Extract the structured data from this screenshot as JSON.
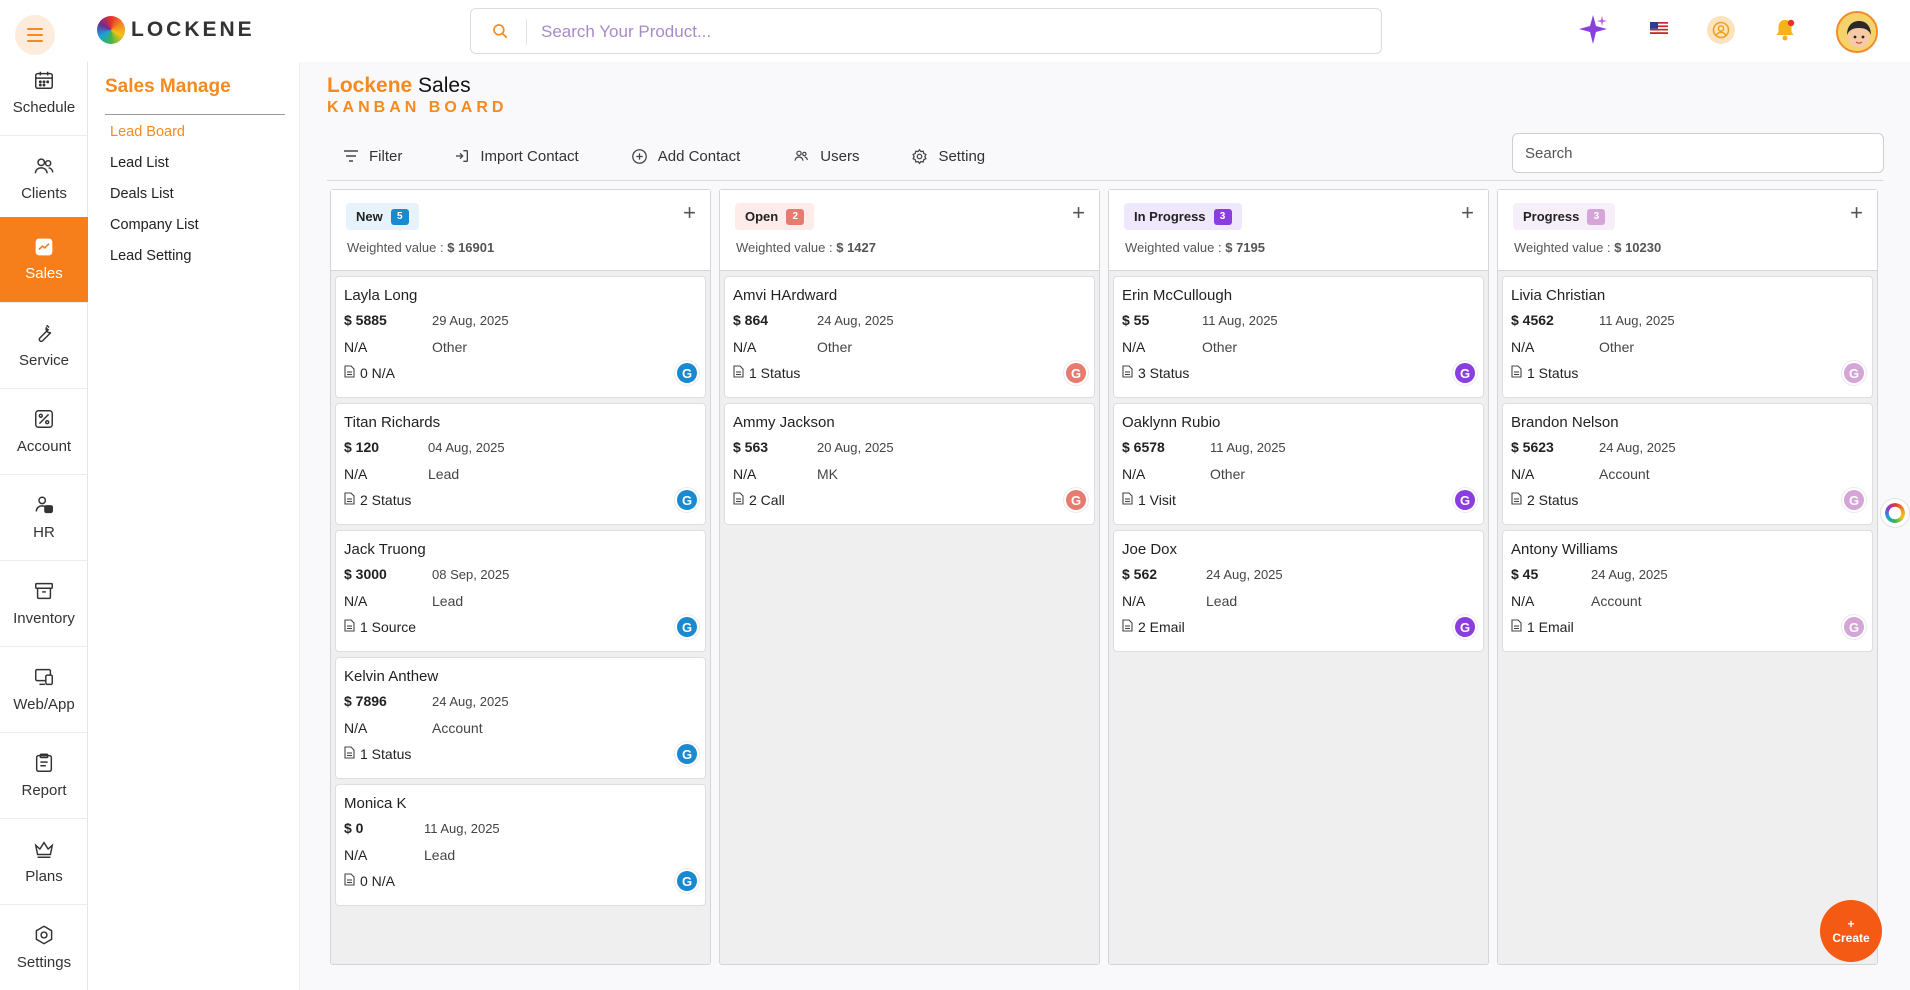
{
  "header": {
    "logo_text": "LOCKENE",
    "search_placeholder": "Search Your Product..."
  },
  "rail": [
    {
      "label": "Schedule",
      "icon": "calendar-icon"
    },
    {
      "label": "Clients",
      "icon": "users-icon"
    },
    {
      "label": "Sales",
      "icon": "trend-icon",
      "active": true
    },
    {
      "label": "Service",
      "icon": "wrench-icon"
    },
    {
      "label": "Account",
      "icon": "percent-icon"
    },
    {
      "label": "HR",
      "icon": "hr-icon"
    },
    {
      "label": "Inventory",
      "icon": "box-icon"
    },
    {
      "label": "Web/App",
      "icon": "devices-icon"
    },
    {
      "label": "Report",
      "icon": "report-icon"
    },
    {
      "label": "Plans",
      "icon": "crown-icon"
    },
    {
      "label": "Settings",
      "icon": "gear-icon"
    }
  ],
  "submenu": {
    "title": "Sales Manage",
    "items": [
      "Lead Board",
      "Lead List",
      "Deals List",
      "Company List",
      "Lead Setting"
    ]
  },
  "page": {
    "brand": "Lockene",
    "title": "Sales",
    "subtitle": "KANBAN BOARD"
  },
  "toolbar": {
    "filter": "Filter",
    "import": "Import Contact",
    "add": "Add Contact",
    "users": "Users",
    "setting": "Setting",
    "search_placeholder": "Search"
  },
  "columns": [
    {
      "title": "New",
      "count": "5",
      "badge_bg": "#e6f3fb",
      "count_bg": "#1a8ad0",
      "avatar_color": "#1a8ad0",
      "weighted_label": "Weighted value :",
      "weighted_value": "$ 16901",
      "cards": [
        {
          "name": "Layla Long",
          "amount": "$ 5885",
          "date": "29 Aug, 2025",
          "na": "N/A",
          "type": "Other",
          "status": "0 N/A",
          "initial": "G"
        },
        {
          "name": "Titan Richards",
          "amount": "$ 120",
          "date": "04 Aug, 2025",
          "na": "N/A",
          "type": "Lead",
          "status": "2 Status",
          "initial": "G"
        },
        {
          "name": "Jack Truong",
          "amount": "$ 3000",
          "date": "08 Sep, 2025",
          "na": "N/A",
          "type": "Lead",
          "status": "1 Source",
          "initial": "G"
        },
        {
          "name": "Kelvin Anthew",
          "amount": "$ 7896",
          "date": "24 Aug, 2025",
          "na": "N/A",
          "type": "Account",
          "status": "1 Status",
          "initial": "G"
        },
        {
          "name": "Monica K",
          "amount": "$ 0",
          "date": "11 Aug, 2025",
          "na": "N/A",
          "type": "Lead",
          "status": "0 N/A",
          "initial": "G"
        }
      ]
    },
    {
      "title": "Open",
      "count": "2",
      "badge_bg": "#fdecea",
      "count_bg": "#e87b6f",
      "avatar_color": "#e87b6f",
      "weighted_label": "Weighted value :",
      "weighted_value": "$ 1427",
      "cards": [
        {
          "name": "Amvi HArdward",
          "amount": "$ 864",
          "date": "24 Aug, 2025",
          "na": "N/A",
          "type": "Other",
          "status": "1 Status",
          "initial": "G"
        },
        {
          "name": "Ammy Jackson",
          "amount": "$ 563",
          "date": "20 Aug, 2025",
          "na": "N/A",
          "type": "MK",
          "status": "2 Call",
          "initial": "G"
        }
      ]
    },
    {
      "title": "In Progress",
      "count": "3",
      "badge_bg": "#efe7fb",
      "count_bg": "#8a3ee0",
      "avatar_color": "#8a3ee0",
      "weighted_label": "Weighted value :",
      "weighted_value": "$ 7195",
      "cards": [
        {
          "name": "Erin McCullough",
          "amount": "$ 55",
          "date": "11 Aug, 2025",
          "na": "N/A",
          "type": "Other",
          "status": "3 Status",
          "initial": "G"
        },
        {
          "name": "Oaklynn Rubio",
          "amount": "$ 6578",
          "date": "11 Aug, 2025",
          "na": "N/A",
          "type": "Other",
          "status": "1 Visit",
          "initial": "G"
        },
        {
          "name": "Joe Dox",
          "amount": "$ 562",
          "date": "24 Aug, 2025",
          "na": "N/A",
          "type": "Lead",
          "status": "2 Email",
          "initial": "G"
        }
      ]
    },
    {
      "title": "Progress",
      "count": "3",
      "badge_bg": "#f6eef8",
      "count_bg": "#d5a5d8",
      "avatar_color": "#d5a5d8",
      "weighted_label": "Weighted value :",
      "weighted_value": "$ 10230",
      "cards": [
        {
          "name": "Livia Christian",
          "amount": "$ 4562",
          "date": "11 Aug, 2025",
          "na": "N/A",
          "type": "Other",
          "status": "1 Status",
          "initial": "G"
        },
        {
          "name": "Brandon Nelson",
          "amount": "$ 5623",
          "date": "24 Aug, 2025",
          "na": "N/A",
          "type": "Account",
          "status": "2 Status",
          "initial": "G"
        },
        {
          "name": "Antony Williams",
          "amount": "$ 45",
          "date": "24 Aug, 2025",
          "na": "N/A",
          "type": "Account",
          "status": "1 Email",
          "initial": "G"
        }
      ]
    }
  ],
  "create_button": {
    "plus": "+",
    "label": "Create"
  },
  "colors": {
    "accent": "#f58a1f",
    "create": "#f45a13"
  }
}
